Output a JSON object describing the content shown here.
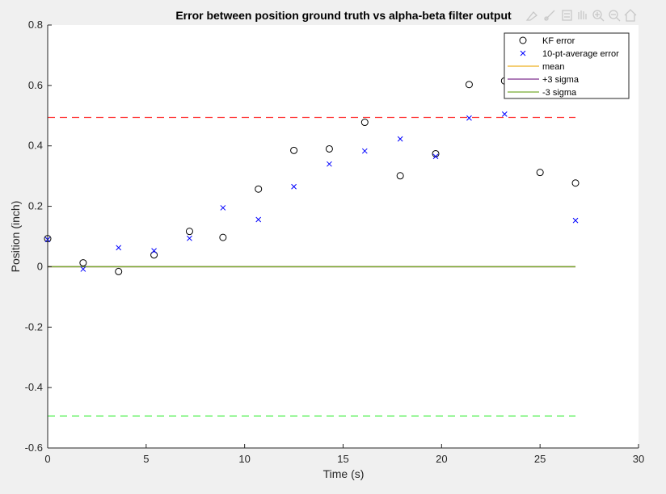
{
  "figure": {
    "background": "#f0f0f0",
    "toolbar": [
      "brush-icon",
      "data-tip-icon",
      "export-icon",
      "pan-icon",
      "zoom-in-icon",
      "zoom-out-icon",
      "home-icon"
    ]
  },
  "chart_data": {
    "type": "scatter",
    "title": "Error between position ground truth vs alpha-beta filter output",
    "xlabel": "Time (s)",
    "ylabel": "Position (inch)",
    "xlim": [
      0,
      30
    ],
    "ylim": [
      -0.6,
      0.8
    ],
    "xticks": [
      0,
      5,
      10,
      15,
      20,
      25,
      30
    ],
    "xtick_labels": [
      "0",
      "5",
      "10",
      "15",
      "20",
      "25",
      "30"
    ],
    "yticks": [
      0.8,
      0.6,
      0.4,
      0.2,
      0,
      -0.2,
      -0.4,
      -0.6
    ],
    "ytick_labels": [
      "0.8",
      "0.6",
      "0.4",
      "0.2",
      "0",
      "-0.2",
      "-0.4",
      "-0.6"
    ],
    "grid": false,
    "legend_position": "top-right",
    "series": [
      {
        "name": "KF error",
        "kind": "marker-circle",
        "color": "#000000",
        "x": [
          0,
          1.8,
          3.6,
          5.4,
          7.2,
          8.9,
          10.7,
          12.5,
          14.3,
          16.1,
          17.9,
          19.7,
          21.4,
          23.2,
          25.0,
          26.8
        ],
        "y": [
          0.093,
          0.013,
          -0.016,
          0.039,
          0.117,
          0.097,
          0.257,
          0.385,
          0.39,
          0.478,
          0.301,
          0.374,
          0.603,
          0.615,
          0.312,
          0.277
        ]
      },
      {
        "name": "10-pt-average error",
        "kind": "marker-x",
        "color": "#0000ff",
        "x": [
          0,
          1.8,
          3.6,
          5.4,
          7.2,
          8.9,
          10.7,
          12.5,
          14.3,
          16.1,
          17.9,
          19.7,
          21.4,
          23.2,
          26.8
        ],
        "y": [
          0.09,
          -0.008,
          0.063,
          0.053,
          0.094,
          0.195,
          0.156,
          0.265,
          0.34,
          0.383,
          0.423,
          0.365,
          0.492,
          0.505,
          0.153
        ]
      },
      {
        "name": "mean",
        "kind": "line",
        "color": "#edb120",
        "x": [
          0,
          26.8
        ],
        "y": [
          0,
          0
        ]
      },
      {
        "name": "+3 sigma",
        "kind": "line",
        "color": "#7e2f8e",
        "x": [
          0,
          26.8
        ],
        "y": [
          0,
          0
        ]
      },
      {
        "name": "-3 sigma",
        "kind": "line",
        "color": "#77ac30",
        "x": [
          0,
          26.8
        ],
        "y": [
          0,
          0
        ]
      }
    ],
    "reference_lines": [
      {
        "y": 0.494,
        "x": [
          0,
          26.8
        ],
        "color": "#ff3333",
        "style": "dashed"
      },
      {
        "y": -0.494,
        "x": [
          0,
          26.8
        ],
        "color": "#33ee33",
        "style": "dashed"
      }
    ]
  }
}
